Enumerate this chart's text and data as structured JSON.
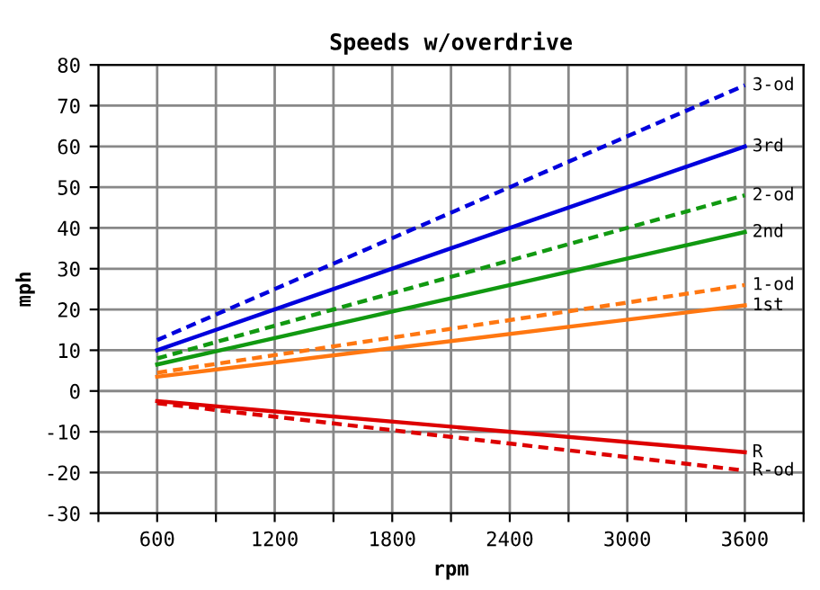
{
  "chart_data": {
    "type": "line",
    "title": "Speeds w/overdrive",
    "xlabel": "rpm",
    "ylabel": "mph",
    "x": [
      600,
      3600
    ],
    "series": [
      {
        "name": "3-od",
        "color": "#0000dd",
        "values": [
          12.5,
          75
        ],
        "line_style": "dashed"
      },
      {
        "name": "3rd",
        "color": "#0000dd",
        "values": [
          10,
          60
        ],
        "line_style": "solid"
      },
      {
        "name": "2-od",
        "color": "#119911",
        "values": [
          8,
          48
        ],
        "line_style": "dashed"
      },
      {
        "name": "2nd",
        "color": "#119911",
        "values": [
          6.5,
          39
        ],
        "line_style": "solid"
      },
      {
        "name": "1-od",
        "color": "#ff7711",
        "values": [
          4.5,
          26
        ],
        "line_style": "dashed"
      },
      {
        "name": "1st",
        "color": "#ff7711",
        "values": [
          3.5,
          21
        ],
        "line_style": "solid"
      },
      {
        "name": "R",
        "color": "#dd0000",
        "values": [
          -2.5,
          -15
        ],
        "line_style": "solid"
      },
      {
        "name": "R-od",
        "color": "#dd0000",
        "values": [
          -3,
          -19.5
        ],
        "line_style": "dashed"
      }
    ],
    "xlim": [
      300,
      3900
    ],
    "xticks": [
      {
        "value": 300,
        "label": null
      },
      600,
      {
        "value": 900,
        "label": null
      },
      1200,
      {
        "value": 1500,
        "label": null
      },
      1800,
      {
        "value": 2100,
        "label": null
      },
      2400,
      {
        "value": 2700,
        "label": null
      },
      3000,
      {
        "value": 3300,
        "label": null
      },
      3600,
      {
        "value": 3900,
        "label": null
      }
    ],
    "ylim": [
      -30,
      80
    ],
    "yticks": [
      -30,
      -20,
      -10,
      0,
      10,
      20,
      30,
      40,
      50,
      60,
      70,
      80
    ],
    "grid": true,
    "legend": false,
    "marker": "none"
  }
}
